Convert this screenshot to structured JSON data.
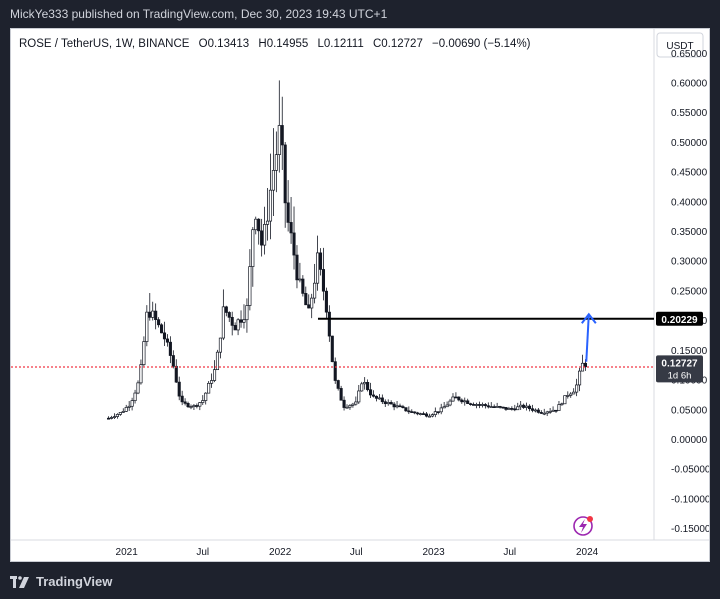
{
  "header": {
    "publisher_line": "MickYe333 published on TradingView.com, Dec 30, 2023 19:43 UTC+1"
  },
  "footer": {
    "brand": "TradingView"
  },
  "chart_header": {
    "symbol": "ROSE / TetherUS, 1W, BINANCE",
    "open_label": "O",
    "open": "0.13413",
    "high_label": "H",
    "high": "0.14955",
    "low_label": "L",
    "low": "0.12111",
    "close_label": "C",
    "close": "0.12727",
    "change": "−0.00690 (−5.14%)"
  },
  "currency_button": "USDT",
  "chart_data": {
    "type": "candlestick",
    "ylim": [
      -0.17,
      0.69
    ],
    "y_ticks": [
      "0.65000",
      "0.60000",
      "0.55000",
      "0.50000",
      "0.45000",
      "0.40000",
      "0.35000",
      "0.30000",
      "0.25000",
      "0.20000",
      "0.15000",
      "0.10000",
      "0.05000",
      "0.00000",
      "-0.05000",
      "-0.10000",
      "-0.15000"
    ],
    "x_ticks": [
      "2021",
      "Jul",
      "2022",
      "Jul",
      "2023",
      "Jul",
      "2024"
    ],
    "price_path": [
      {
        "t": "2020-11-19",
        "v": 0.035
      },
      {
        "t": "2020-12-20",
        "v": 0.045
      },
      {
        "t": "2021-01-10",
        "v": 0.06
      },
      {
        "t": "2021-02-01",
        "v": 0.1
      },
      {
        "t": "2021-02-20",
        "v": 0.22
      },
      {
        "t": "2021-03-10",
        "v": 0.2
      },
      {
        "t": "2021-04-01",
        "v": 0.17
      },
      {
        "t": "2021-04-20",
        "v": 0.13
      },
      {
        "t": "2021-05-10",
        "v": 0.06
      },
      {
        "t": "2021-06-10",
        "v": 0.055
      },
      {
        "t": "2021-07-01",
        "v": 0.065
      },
      {
        "t": "2021-08-01",
        "v": 0.12
      },
      {
        "t": "2021-08-20",
        "v": 0.22
      },
      {
        "t": "2021-09-15",
        "v": 0.19
      },
      {
        "t": "2021-10-15",
        "v": 0.22
      },
      {
        "t": "2021-11-01",
        "v": 0.4
      },
      {
        "t": "2021-11-20",
        "v": 0.32
      },
      {
        "t": "2021-12-15",
        "v": 0.45
      },
      {
        "t": "2022-01-01",
        "v": 0.52
      },
      {
        "t": "2022-01-15",
        "v": 0.38
      },
      {
        "t": "2022-02-01",
        "v": 0.32
      },
      {
        "t": "2022-02-15",
        "v": 0.26
      },
      {
        "t": "2022-03-10",
        "v": 0.21
      },
      {
        "t": "2022-03-31",
        "v": 0.3
      },
      {
        "t": "2022-04-20",
        "v": 0.23
      },
      {
        "t": "2022-05-10",
        "v": 0.1
      },
      {
        "t": "2022-06-01",
        "v": 0.055
      },
      {
        "t": "2022-07-01",
        "v": 0.06
      },
      {
        "t": "2022-07-15",
        "v": 0.1
      },
      {
        "t": "2022-08-10",
        "v": 0.07
      },
      {
        "t": "2022-09-15",
        "v": 0.06
      },
      {
        "t": "2022-11-10",
        "v": 0.045
      },
      {
        "t": "2022-12-20",
        "v": 0.04
      },
      {
        "t": "2023-01-20",
        "v": 0.05
      },
      {
        "t": "2023-02-20",
        "v": 0.07
      },
      {
        "t": "2023-04-01",
        "v": 0.06
      },
      {
        "t": "2023-05-15",
        "v": 0.055
      },
      {
        "t": "2023-07-01",
        "v": 0.05
      },
      {
        "t": "2023-08-01",
        "v": 0.055
      },
      {
        "t": "2023-09-15",
        "v": 0.045
      },
      {
        "t": "2023-10-20",
        "v": 0.05
      },
      {
        "t": "2023-11-15",
        "v": 0.075
      },
      {
        "t": "2023-12-05",
        "v": 0.085
      },
      {
        "t": "2023-12-20",
        "v": 0.125
      },
      {
        "t": "2023-12-30",
        "v": 0.127
      }
    ],
    "horizontal_lines": [
      {
        "value": 0.20229,
        "label": "0.20229",
        "style": "solid",
        "color": "#000000",
        "start": "2022-04-01"
      },
      {
        "value": 0.12111,
        "label": "0.12111",
        "style": "dotted",
        "color": "#f23645"
      }
    ],
    "last_price": {
      "value": 0.12727,
      "label": "0.12727",
      "countdown": "1d 6h",
      "color": "#363a45"
    },
    "projection_arrow": {
      "from": {
        "t": "2023-12-30",
        "v": 0.13
      },
      "to": {
        "t": "2024-01-05",
        "v": 0.21
      },
      "color": "#2962ff"
    },
    "colors": {
      "candles": "#131722",
      "axis_text": "#131722",
      "support": "#f23645",
      "arrow": "#2962ff"
    }
  }
}
